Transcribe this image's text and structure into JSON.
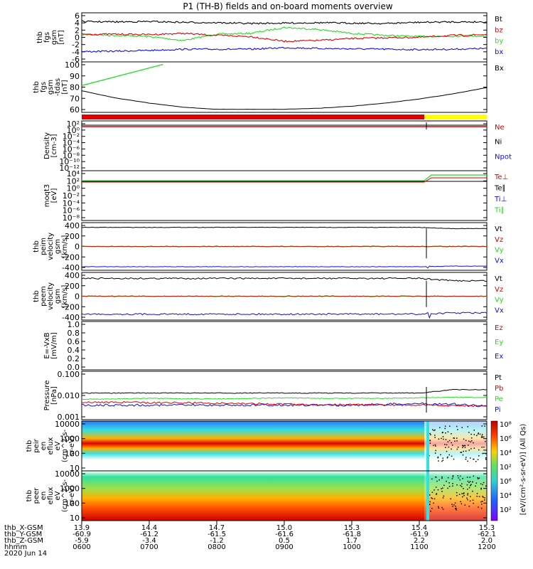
{
  "title": "P1 (TH-B) fields and on-board moments overview",
  "colors": {
    "black": "#000000",
    "red": "#e00000",
    "green": "#22dd22",
    "blue": "#1010d8",
    "yellow": "#ffff00"
  },
  "chart_data": [
    {
      "type": "line",
      "ylabel": [
        "thb",
        "fgs",
        "gsm",
        "[nT]"
      ],
      "ylim": [
        -6,
        6
      ],
      "yticks": [
        "6",
        "4",
        "2",
        "0",
        "-2",
        "-4",
        "-6"
      ],
      "series": [
        {
          "name": "Bt",
          "color": "black",
          "values": [
            4.0,
            3.9,
            4.0,
            3.8,
            3.7,
            3.5,
            3.6,
            3.7,
            3.6,
            3.5,
            3.8,
            3.9,
            3.9
          ]
        },
        {
          "name": "bz",
          "color": "red",
          "values": [
            0.8,
            0.8,
            0.7,
            1.0,
            0.5,
            0.2,
            -1.0,
            -0.8,
            -0.3,
            -0.1,
            0.0,
            0.5,
            0.7
          ]
        },
        {
          "name": "by",
          "color": "green",
          "values": [
            0.7,
            0.5,
            0.2,
            -0.8,
            0.8,
            1.0,
            2.5,
            2.0,
            1.0,
            0.5,
            0.2,
            0.3,
            0.3
          ]
        },
        {
          "name": "bx",
          "color": "blue",
          "values": [
            -3.6,
            -3.5,
            -3.3,
            -3.0,
            -3.0,
            -3.0,
            -2.6,
            -2.8,
            -2.9,
            -3.0,
            -3.1,
            -3.0,
            -2.8
          ]
        }
      ]
    },
    {
      "type": "line",
      "ylabel": [
        "thb",
        "fgs",
        "gsm",
        "-tdas",
        "[nT]"
      ],
      "ylim": [
        55,
        102
      ],
      "yticks": [
        "100",
        "90",
        "80",
        "70",
        "60"
      ],
      "series": [
        {
          "name": "Bx",
          "color": "black",
          "values": [
            75,
            68,
            63,
            59,
            57,
            57,
            57,
            58,
            60,
            63,
            67,
            72,
            78
          ]
        },
        {
          "name": "",
          "color": "green",
          "values": [
            80,
            90,
            100,
            null,
            null,
            null,
            null,
            null,
            null,
            null,
            null,
            null,
            null
          ]
        }
      ]
    },
    {
      "type": "line",
      "ylabel": [
        "Density",
        "[cm-3]"
      ],
      "yticks": [
        "10²",
        "10⁰",
        "10⁻²",
        "10⁻⁴",
        "10⁻⁶",
        "10⁻⁸",
        "10⁻¹⁰",
        "10⁻¹²"
      ],
      "series": [
        {
          "name": "Ne",
          "color": "red"
        },
        {
          "name": "Ni",
          "color": "black"
        },
        {
          "name": "Npot",
          "color": "blue"
        }
      ]
    },
    {
      "type": "line",
      "ylabel": [
        "moqt3",
        "[eV]"
      ],
      "yticks": [
        "10⁴",
        "10²",
        "10⁰",
        "10⁻²",
        "10⁻⁴",
        "10⁻⁶",
        "10⁻⁸"
      ],
      "series": [
        {
          "name": "Te⊥",
          "color": "red"
        },
        {
          "name": "Te∥",
          "color": "black"
        },
        {
          "name": "Ti⊥",
          "color": "blue"
        },
        {
          "name": "Ti∥",
          "color": "green"
        }
      ]
    },
    {
      "type": "line",
      "ylabel": [
        "thb",
        "peim",
        "velocity",
        "gsm",
        "[km/s]"
      ],
      "ylim": [
        -400,
        400
      ],
      "yticks": [
        "400",
        "200",
        "0",
        "-200",
        "-400"
      ],
      "series": [
        {
          "name": "Vt",
          "color": "black"
        },
        {
          "name": "Vz",
          "color": "red"
        },
        {
          "name": "Vy",
          "color": "green"
        },
        {
          "name": "Vx",
          "color": "blue"
        }
      ]
    },
    {
      "type": "line",
      "ylabel": [
        "thb",
        "peem",
        "velocity",
        "gsm",
        "[km/s]"
      ],
      "ylim": [
        -400,
        400
      ],
      "yticks": [
        "400",
        "200",
        "0",
        "-200",
        "-400"
      ],
      "series": [
        {
          "name": "Vt",
          "color": "black"
        },
        {
          "name": "Vz",
          "color": "red"
        },
        {
          "name": "Vy",
          "color": "green"
        },
        {
          "name": "Vx",
          "color": "blue"
        }
      ]
    },
    {
      "type": "line",
      "ylabel": [
        "E=-VxB",
        "[mV/m]"
      ],
      "ylim": [
        0,
        1
      ],
      "yticks": [
        "1.0",
        "0.8",
        "0.6",
        "0.4",
        "0.2",
        "0.0"
      ],
      "series": [
        {
          "name": "Ez",
          "color": "red"
        },
        {
          "name": "Ey",
          "color": "green"
        },
        {
          "name": "Ex",
          "color": "blue"
        }
      ]
    },
    {
      "type": "line",
      "ylabel": [
        "Pressure",
        "[nPa]"
      ],
      "yticks": [
        "0.100",
        "0.010",
        "0.001"
      ],
      "series": [
        {
          "name": "Pt",
          "color": "black"
        },
        {
          "name": "Pb",
          "color": "red"
        },
        {
          "name": "Pe",
          "color": "green"
        },
        {
          "name": "Pi",
          "color": "blue"
        }
      ]
    },
    {
      "type": "heatmap",
      "ylabel": [
        "thb",
        "peir",
        "en",
        "eflux",
        "eV",
        "(cm^2-s-",
        "sr-eV)"
      ],
      "yticks": [
        "10000",
        "1000",
        "100",
        "10"
      ]
    },
    {
      "type": "heatmap",
      "ylabel": [
        "thb",
        "peer",
        "en",
        "eflux",
        "eV",
        "(cm^2-s-",
        "sr-eV)"
      ],
      "yticks": [
        "10000",
        "1000",
        "100",
        "10"
      ]
    }
  ],
  "colorbar": {
    "label": "[eV/(cm²-s-sr-eV)] (All Qs)",
    "ticks": [
      "10⁸",
      "10⁶",
      "10⁴",
      "10²",
      "10⁶",
      "10⁴",
      "10²"
    ]
  },
  "xaxis": {
    "rows": [
      {
        "label": "thb_X-GSM",
        "values": [
          "13.9",
          "14.4",
          "14.7",
          "15.0",
          "15.3",
          "15.4",
          "15.3"
        ]
      },
      {
        "label": "thb_Y-GSM",
        "values": [
          "-60.9",
          "-61.2",
          "-61.5",
          "-61.6",
          "-61.8",
          "-61.9",
          "-62.1"
        ]
      },
      {
        "label": "thb_Z-GSM",
        "values": [
          "-5.9",
          "-3.4",
          "-1.2",
          "0.5",
          "1.7",
          "2.2",
          "2.0"
        ]
      },
      {
        "label": "hhmm",
        "values": [
          "0600",
          "0700",
          "0800",
          "0900",
          "1000",
          "1100",
          "1200"
        ]
      }
    ],
    "date": "2020 Jun 14"
  }
}
